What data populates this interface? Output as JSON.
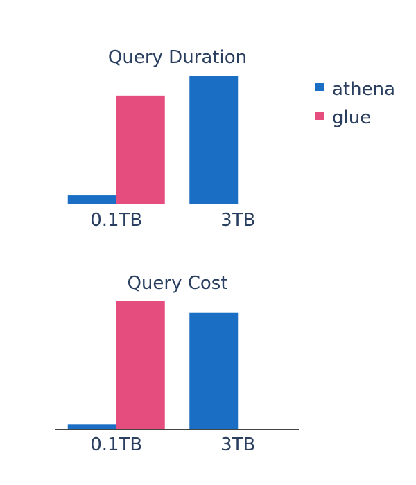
{
  "legend": [
    {
      "name": "athena",
      "color": "#1a6fc4"
    },
    {
      "name": "glue",
      "color": "#e64d7f"
    }
  ],
  "chart_data": [
    {
      "type": "bar",
      "title": "Query Duration",
      "categories": [
        "0.1TB",
        "3TB"
      ],
      "series": [
        {
          "name": "athena",
          "values": [
            12,
            185
          ]
        },
        {
          "name": "glue",
          "values": [
            157,
            null
          ]
        }
      ],
      "ylim": [
        0,
        185
      ],
      "legend_position": "top-right",
      "grid": false
    },
    {
      "type": "bar",
      "title": "Query Cost",
      "categories": [
        "0.1TB",
        "3TB"
      ],
      "series": [
        {
          "name": "athena",
          "values": [
            0.04,
            1
          ]
        },
        {
          "name": "glue",
          "values": [
            1.1,
            null
          ]
        }
      ],
      "ylim": [
        0,
        1.1
      ],
      "grid": false
    }
  ]
}
